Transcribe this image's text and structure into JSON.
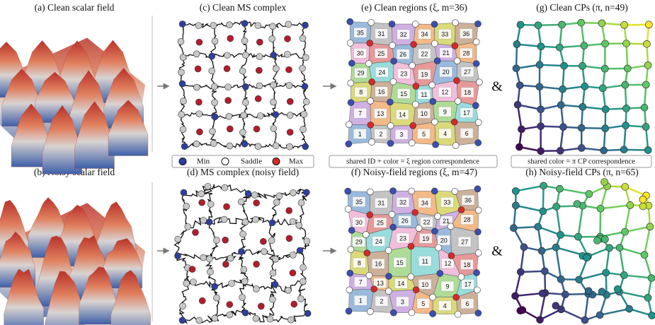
{
  "panels": [
    {
      "title": "(a) Clean scalar field"
    },
    {
      "title": "(c) Clean MS complex"
    },
    {
      "title": "(e) Clean regions (ξ, m=36)"
    },
    {
      "title": "(g) Clean CPs (π, n=49)"
    },
    {
      "title": "(b) Noisy scalar field"
    },
    {
      "title": "(d) MS complex (noisy field)"
    },
    {
      "title": "(f) Noisy-field regions (ξ, m=47)"
    },
    {
      "title": "(h) Noisy-field CPs (π, n=65)"
    }
  ],
  "legend": {
    "items": [
      "Min",
      "Saddle",
      "Max"
    ]
  },
  "notes": [
    "shared ID + color = ξ region correspondence",
    "shared color = π CP correspondence"
  ],
  "connectors": [
    "&",
    "&"
  ],
  "regions_clean": [
    [
      "35",
      "31",
      "32",
      "34",
      "33",
      "36"
    ],
    [
      "30",
      "25",
      "26",
      "22",
      "21",
      "28"
    ],
    [
      "29",
      "24",
      "23",
      "19",
      "20",
      "27"
    ],
    [
      "8",
      "16",
      "15",
      "11",
      "12",
      "18"
    ],
    [
      "7",
      "13",
      "14",
      "10",
      "9",
      "17"
    ],
    [
      "1",
      "2",
      "3",
      "5",
      "4",
      "6"
    ]
  ],
  "regions_noisy": [
    [
      "35",
      "31",
      "32",
      "34",
      "33",
      "36"
    ],
    [
      "30",
      "25",
      "26",
      "22",
      "21",
      "28"
    ],
    [
      "29",
      "24",
      "23",
      "19",
      "20",
      "27"
    ],
    [
      "8",
      "16",
      "15",
      "11",
      "12",
      "18"
    ],
    [
      "7",
      "13",
      "14",
      "10",
      "9",
      "17"
    ],
    [
      "1",
      "2",
      "3",
      "5",
      "4",
      "6"
    ]
  ]
}
